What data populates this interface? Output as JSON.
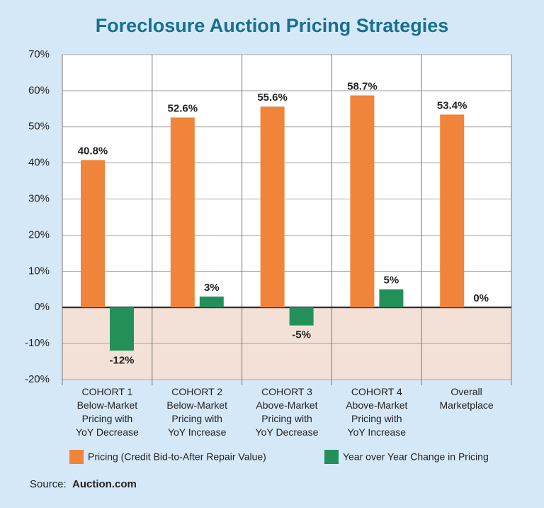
{
  "chart_data": {
    "type": "bar",
    "title": "Foreclosure Auction Pricing Strategies",
    "categories": [
      "COHORT 1\nBelow-Market\nPricing with\nYoY Decrease",
      "COHORT 2\nBelow-Market\nPricing with\nYoY Increase",
      "COHORT 3\nAbove-Market\nPricing with\nYoY Decrease",
      "COHORT 4\nAbove-Market\nPricing with\nYoY Increase",
      "Overall\nMarketplace"
    ],
    "series": [
      {
        "name": "Pricing (Credit Bid-to-After Repair Value)",
        "color": "#f0843a",
        "values": [
          40.8,
          52.6,
          55.6,
          58.7,
          53.4
        ],
        "value_labels": [
          "40.8%",
          "52.6%",
          "55.6%",
          "58.7%",
          "53.4%"
        ]
      },
      {
        "name": "Year over Year Change in Pricing",
        "color": "#23905a",
        "values": [
          -12,
          3,
          -5,
          5,
          0
        ],
        "value_labels": [
          "-12%",
          "3%",
          "-5%",
          "5%",
          "0%"
        ]
      }
    ],
    "ylim": [
      -20,
      70
    ],
    "yticks": [
      {
        "value": -20,
        "label": "-20%"
      },
      {
        "value": -10,
        "label": "-10%"
      },
      {
        "value": 0,
        "label": "0%"
      },
      {
        "value": 10,
        "label": "10%"
      },
      {
        "value": 20,
        "label": "20%"
      },
      {
        "value": 30,
        "label": "30%"
      },
      {
        "value": 40,
        "label": "40%"
      },
      {
        "value": 50,
        "label": "50%"
      },
      {
        "value": 60,
        "label": "60%"
      },
      {
        "value": 70,
        "label": "70%"
      }
    ],
    "grid": true,
    "source_label": "Source:",
    "source_name": "Auction.com"
  }
}
